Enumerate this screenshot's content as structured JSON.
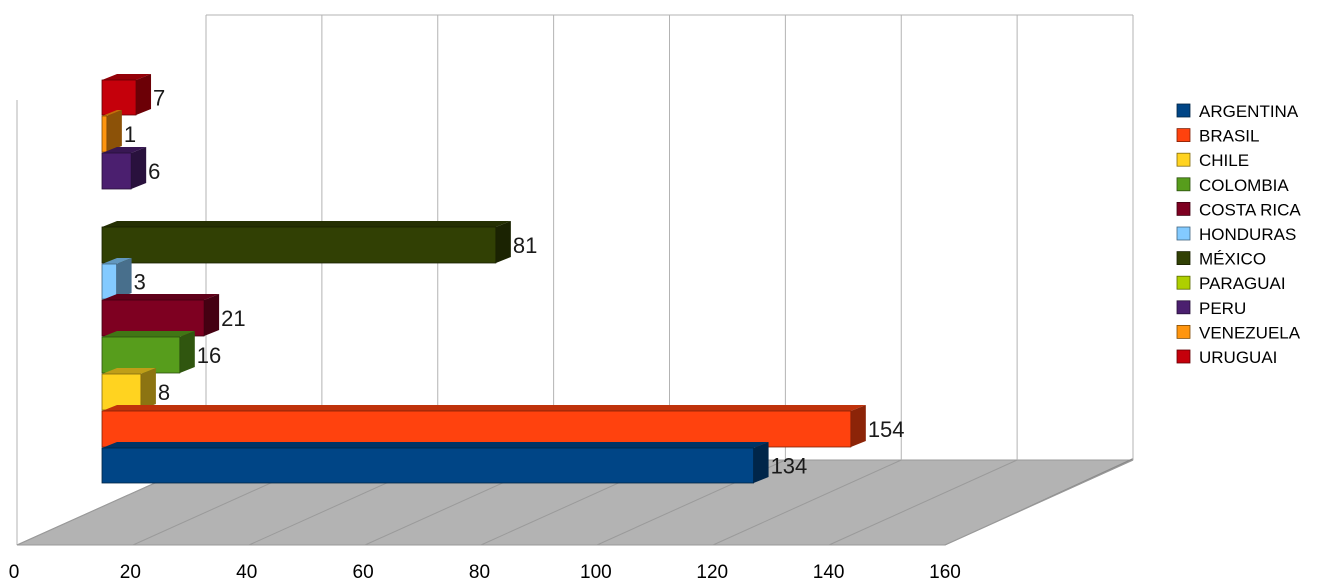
{
  "chart_data": {
    "type": "bar",
    "orientation": "horizontal",
    "three_d": true,
    "grid": true,
    "legend_position": "right",
    "xlim": [
      0,
      160
    ],
    "x_ticks": [
      "0",
      "20",
      "40",
      "60",
      "80",
      "100",
      "120",
      "140",
      "160"
    ],
    "series": [
      {
        "name": "ARGENTINA",
        "value": 134,
        "label": "134",
        "color": "#004586"
      },
      {
        "name": "BRASIL",
        "value": 154,
        "label": "154",
        "color": "#ff420e"
      },
      {
        "name": "CHILE",
        "value": 8,
        "label": "8",
        "color": "#ffd320"
      },
      {
        "name": "COLOMBIA",
        "value": 16,
        "label": "16",
        "color": "#579d1c"
      },
      {
        "name": "COSTA RICA",
        "value": 21,
        "label": "21",
        "color": "#7e0021"
      },
      {
        "name": "HONDURAS",
        "value": 3,
        "label": "3",
        "color": "#83caff"
      },
      {
        "name": "MÉXICO",
        "value": 81,
        "label": "81",
        "color": "#314004"
      },
      {
        "name": "PARAGUAI",
        "value": null,
        "label": "",
        "color": "#aecf00"
      },
      {
        "name": "PERU",
        "value": 6,
        "label": "6",
        "color": "#4b1f6f"
      },
      {
        "name": "VENEZUELA",
        "value": 1,
        "label": "1",
        "color": "#ff950e"
      },
      {
        "name": "URUGUAI",
        "value": 7,
        "label": "7",
        "color": "#c5000b"
      }
    ]
  }
}
